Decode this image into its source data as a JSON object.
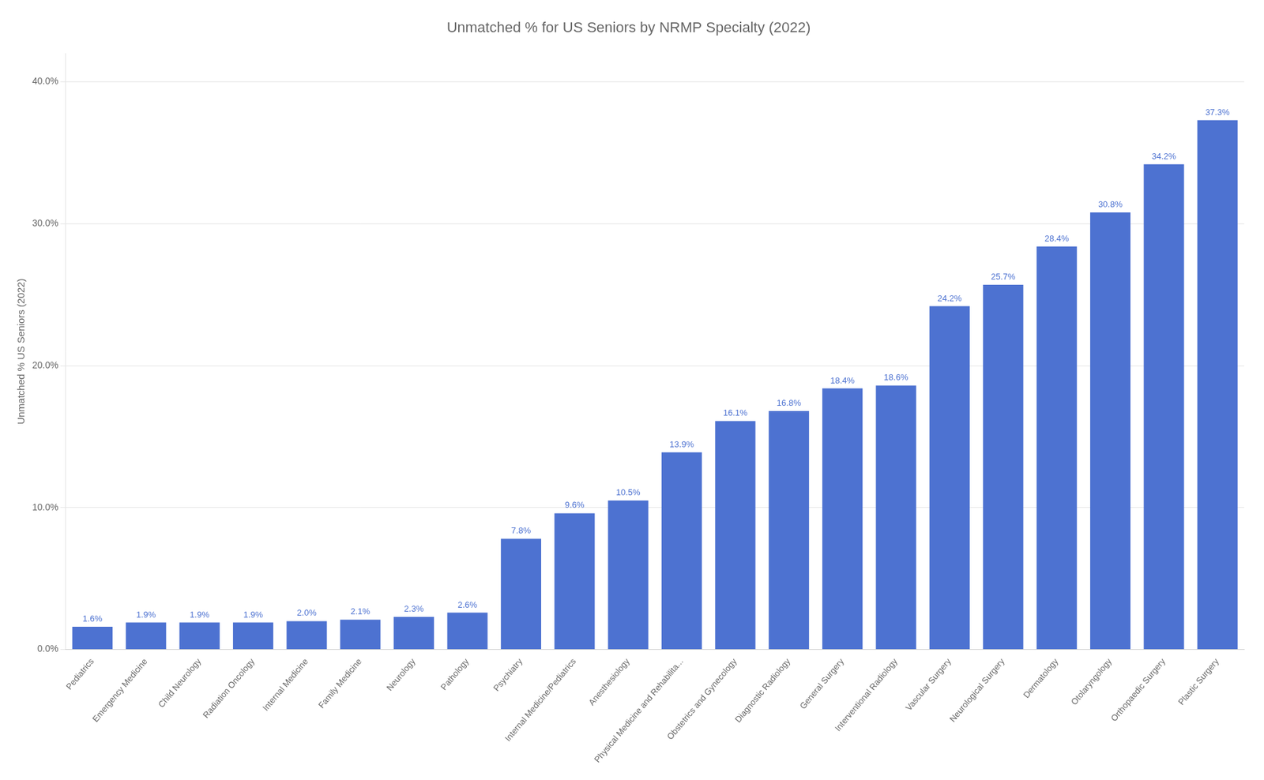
{
  "chart_data": {
    "type": "bar",
    "title": "Unmatched % for US Seniors by NRMP Specialty (2022)",
    "ylabel": "Unmatched % US Seniors (2022)",
    "categories": [
      "Pediatrics",
      "Emergency Medicine",
      "Child Neurology",
      "Radiation Oncology",
      "Internal Medicine",
      "Family Medicine",
      "Neurology",
      "Pathology",
      "Psychiatry",
      "Internal Medicine/Pediatrics",
      "Anesthesiology",
      "Physical Medicine and Rehabilita...",
      "Obstetrics and Gynecology",
      "Diagnostic Radiology",
      "General Surgery",
      "Interventional Radiology",
      "Vascular Surgery",
      "Neurological Surgery",
      "Dermatology",
      "Otolaryngology",
      "Orthopaedic Surgery",
      "Plastic Surgery"
    ],
    "values": [
      1.6,
      1.9,
      1.9,
      1.9,
      2.0,
      2.1,
      2.3,
      2.6,
      7.8,
      9.6,
      10.5,
      13.9,
      16.1,
      16.8,
      18.4,
      18.6,
      24.2,
      25.7,
      28.4,
      30.8,
      34.2,
      37.3
    ],
    "value_labels": [
      "1.6%",
      "1.9%",
      "1.9%",
      "1.9%",
      "2.0%",
      "2.1%",
      "2.3%",
      "2.6%",
      "7.8%",
      "9.6%",
      "10.5%",
      "13.9%",
      "16.1%",
      "16.8%",
      "18.4%",
      "18.6%",
      "24.2%",
      "25.7%",
      "28.4%",
      "30.8%",
      "34.2%",
      "37.3%"
    ],
    "data_labels": true,
    "color": "#4d72d1",
    "ylim": [
      0,
      42
    ],
    "yticks": [
      {
        "value": 0,
        "label": "0.0%"
      },
      {
        "value": 10,
        "label": "10.0%"
      },
      {
        "value": 20,
        "label": "20.0%"
      },
      {
        "value": 30,
        "label": "30.0%"
      },
      {
        "value": 40,
        "label": "40.0%"
      }
    ],
    "grid": true
  }
}
